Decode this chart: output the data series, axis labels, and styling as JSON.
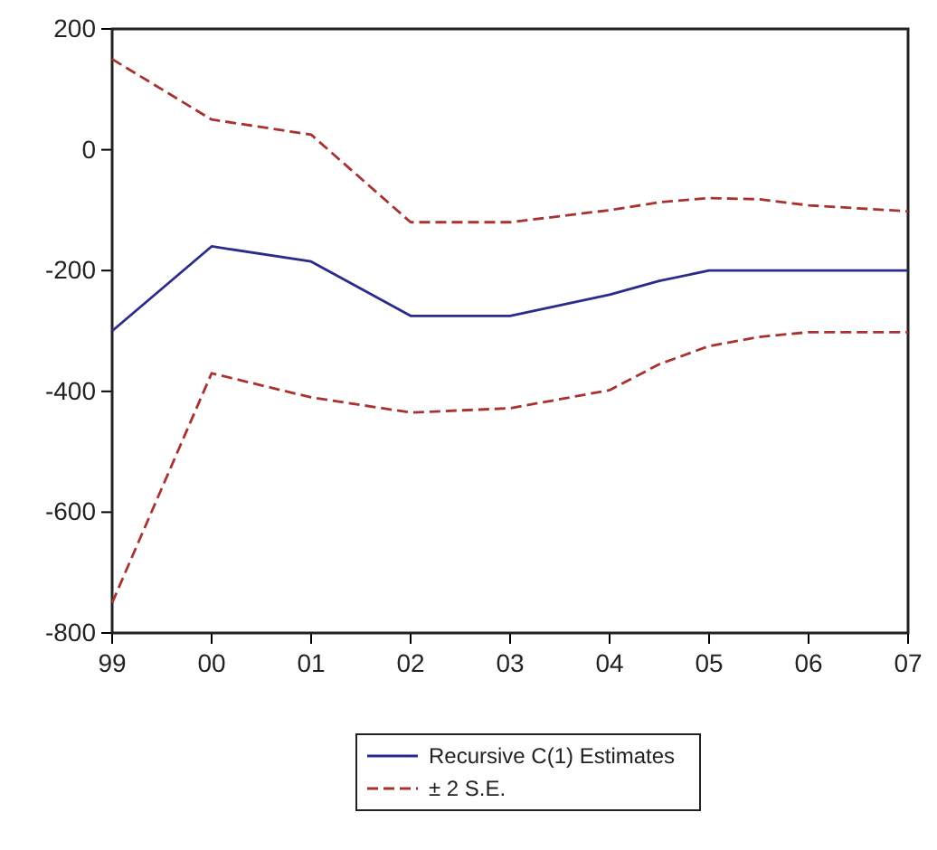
{
  "chart_data": {
    "type": "line",
    "x": [
      1999,
      2000,
      2001,
      2002,
      2003,
      2004,
      2004.5,
      2005,
      2005.5,
      2006,
      2007
    ],
    "xlim": [
      1999,
      2007
    ],
    "xticks": [
      {
        "value": 1999,
        "label": "99"
      },
      {
        "value": 2000,
        "label": "00"
      },
      {
        "value": 2001,
        "label": "01"
      },
      {
        "value": 2002,
        "label": "02"
      },
      {
        "value": 2003,
        "label": "03"
      },
      {
        "value": 2004,
        "label": "04"
      },
      {
        "value": 2005,
        "label": "05"
      },
      {
        "value": 2006,
        "label": "06"
      },
      {
        "value": 2007,
        "label": "07"
      }
    ],
    "ylim": [
      -800,
      200
    ],
    "yticks": [
      -800,
      -600,
      -400,
      -200,
      0,
      200
    ],
    "grid": false,
    "legend": "bottom",
    "marker": "none",
    "series": [
      {
        "name": "Recursive C(1) Estimates",
        "color": "#2b2b8c",
        "line_style": "solid",
        "values": [
          -300,
          -160,
          -185,
          -275,
          -275,
          -240,
          -217,
          -200,
          -200,
          -200,
          -200
        ]
      },
      {
        "name": "± 2 S.E.",
        "color": "#a83232",
        "line_style": "dashed",
        "values": [
          150,
          50,
          25,
          -120,
          -120,
          -100,
          -87,
          -80,
          -82,
          -92,
          -102
        ]
      },
      {
        "color": "#a83232",
        "line_style": "dashed",
        "values": [
          -750,
          -370,
          -410,
          -435,
          -428,
          -398,
          -355,
          -325,
          -310,
          -302,
          -302
        ]
      }
    ]
  }
}
